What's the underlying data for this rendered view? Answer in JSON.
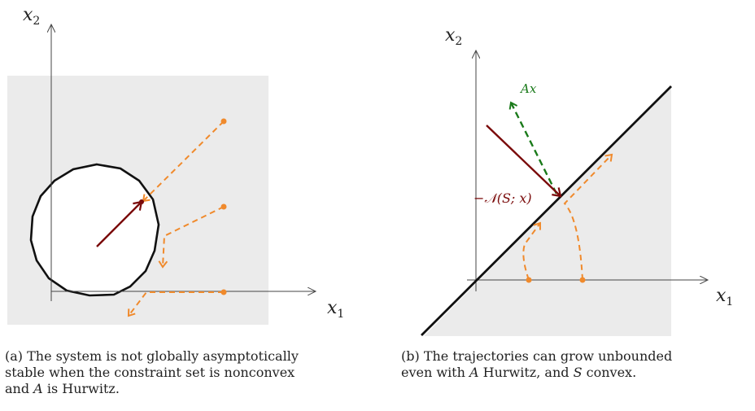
{
  "left_panel": {
    "x_label": "x",
    "x_sub": "1",
    "y_label": "x",
    "y_sub": "2",
    "caption_tag": "(a)",
    "caption_line1": "The system is not globally asymptotically",
    "caption_line2": "stable when the constraint set is nonconvex",
    "caption_line3_pre": "and ",
    "caption_line3_A": "A",
    "caption_line3_post": " is Hurwitz."
  },
  "right_panel": {
    "x_label": "x",
    "x_sub": "1",
    "y_label": "x",
    "y_sub": "2",
    "ax_label": "Ax",
    "normal_cone_label": "−𝒩(S; x)",
    "caption_tag": "(b)",
    "caption_line1": "The trajectories can grow unbounded",
    "caption_line2_pre": "even with ",
    "caption_line2_A": "A",
    "caption_line2_mid": " Hurwitz, and ",
    "caption_line2_S": "S",
    "caption_line2_post": " convex."
  },
  "colors": {
    "region": "#ebebeb",
    "trajectory": "#f08a2c",
    "normal_arrow": "#7a0a0a",
    "ax_arrow": "#1a7a1a",
    "boundary": "#111111",
    "axis": "#444444"
  }
}
